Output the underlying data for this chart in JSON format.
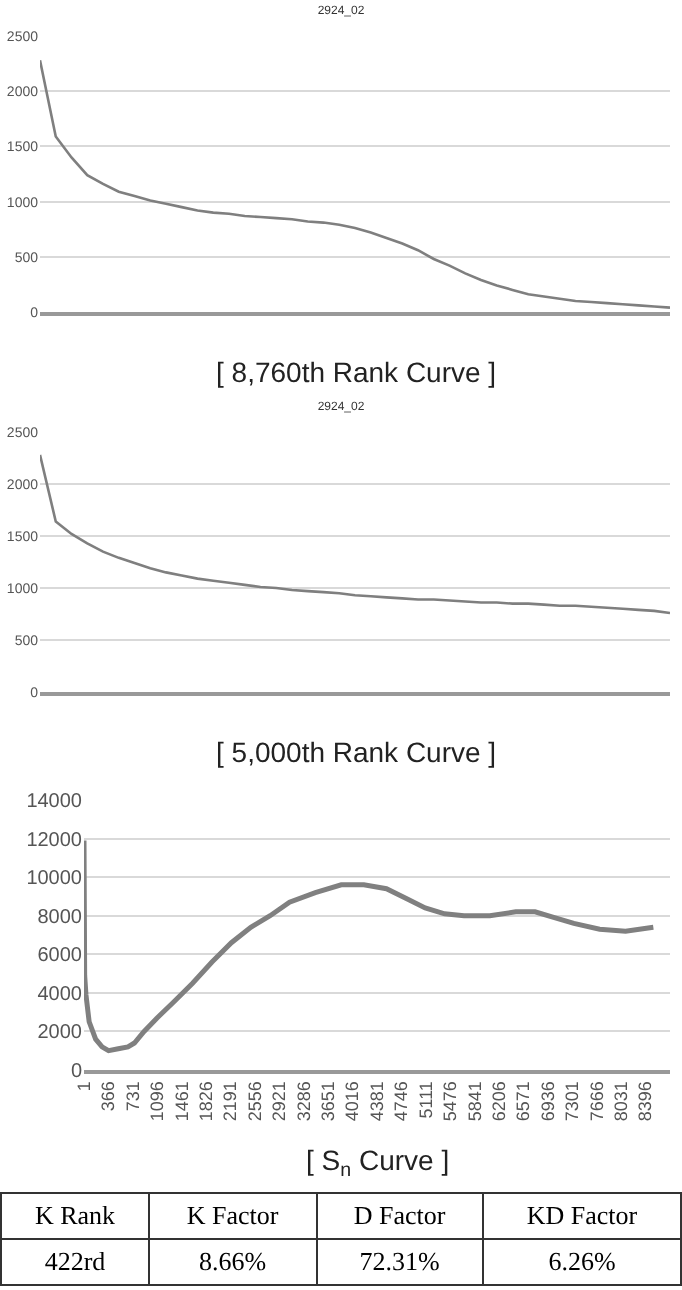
{
  "chart_data": [
    {
      "type": "line",
      "title": "2924_02",
      "annotations": [
        "[ 8,760th Rank Curve ]"
      ],
      "color": "#7f7f7f",
      "grid": "y",
      "tick_labels": "y",
      "ylim": [
        0,
        2500
      ],
      "yticks": [
        0,
        500,
        1000,
        1500,
        2000,
        2500
      ],
      "categories": [
        null,
        null,
        null,
        null,
        null,
        null,
        null,
        null,
        null,
        null,
        null,
        null,
        null,
        null,
        null,
        null,
        null,
        null,
        null,
        null,
        null,
        null,
        null,
        null,
        null,
        null,
        null,
        null,
        null,
        null,
        null,
        null,
        null,
        null,
        null,
        null,
        null,
        null,
        null,
        null,
        null
      ],
      "values": [
        2280,
        1590,
        1400,
        1240,
        1160,
        1090,
        1050,
        1010,
        980,
        950,
        920,
        900,
        890,
        870,
        860,
        850,
        840,
        820,
        810,
        790,
        760,
        720,
        670,
        620,
        560,
        480,
        420,
        350,
        290,
        240,
        200,
        160,
        140,
        120,
        100,
        90,
        80,
        70,
        60,
        50,
        40
      ]
    },
    {
      "type": "line",
      "title": "2924_02",
      "annotations": [
        "[ 5,000th Rank Curve ]"
      ],
      "color": "#7f7f7f",
      "grid": "y",
      "tick_labels": "y",
      "ylim": [
        0,
        2500
      ],
      "yticks": [
        0,
        500,
        1000,
        1500,
        2000,
        2500
      ],
      "categories": [
        null,
        null,
        null,
        null,
        null,
        null,
        null,
        null,
        null,
        null,
        null,
        null,
        null,
        null,
        null,
        null,
        null,
        null,
        null,
        null,
        null,
        null,
        null,
        null,
        null,
        null,
        null,
        null,
        null,
        null,
        null,
        null,
        null,
        null,
        null,
        null,
        null,
        null,
        null,
        null,
        null
      ],
      "values": [
        2280,
        1640,
        1520,
        1430,
        1350,
        1290,
        1240,
        1190,
        1150,
        1120,
        1090,
        1070,
        1050,
        1030,
        1010,
        1000,
        980,
        970,
        960,
        950,
        930,
        920,
        910,
        900,
        890,
        890,
        880,
        870,
        860,
        860,
        850,
        850,
        840,
        830,
        830,
        820,
        810,
        800,
        790,
        780,
        760
      ]
    },
    {
      "type": "line",
      "annotations": [
        "[ S$_{n}$ Curve ]"
      ],
      "color": "#808080",
      "grid": "y",
      "xlim": [
        1,
        8760
      ],
      "ylim": [
        0,
        14000
      ],
      "yticks": [
        0,
        2000,
        4000,
        6000,
        8000,
        10000,
        12000,
        14000
      ],
      "xticks": [
        1,
        366,
        731,
        1096,
        1461,
        1826,
        2191,
        2556,
        2921,
        3286,
        3651,
        4016,
        4381,
        4746,
        5111,
        5476,
        5841,
        6206,
        6571,
        6936,
        7301,
        7666,
        8031,
        8396
      ],
      "x": [
        1,
        11,
        30,
        78,
        175,
        271,
        368,
        513,
        658,
        755,
        899,
        1093,
        1334,
        1624,
        1914,
        2204,
        2494,
        2783,
        3073,
        3459,
        3846,
        4184,
        4522,
        4811,
        5101,
        5391,
        5681,
        6067,
        6454,
        6743,
        7033,
        7323,
        7709,
        8096,
        8511
      ],
      "values": [
        11900,
        4900,
        3900,
        2500,
        1600,
        1200,
        1000,
        1100,
        1200,
        1400,
        2000,
        2700,
        3500,
        4500,
        5600,
        6600,
        7400,
        8000,
        8700,
        9200,
        9600,
        9600,
        9400,
        8900,
        8400,
        8100,
        8000,
        8000,
        8200,
        8200,
        7900,
        7600,
        7300,
        7200,
        7400
      ]
    },
    {
      "type": "other",
      "categories": [
        "K Rank",
        "K Factor",
        "D Factor",
        "KD Factor"
      ],
      "annotations": [
        "422rd",
        "8.66%",
        "72.31%",
        "6.26%"
      ]
    }
  ]
}
